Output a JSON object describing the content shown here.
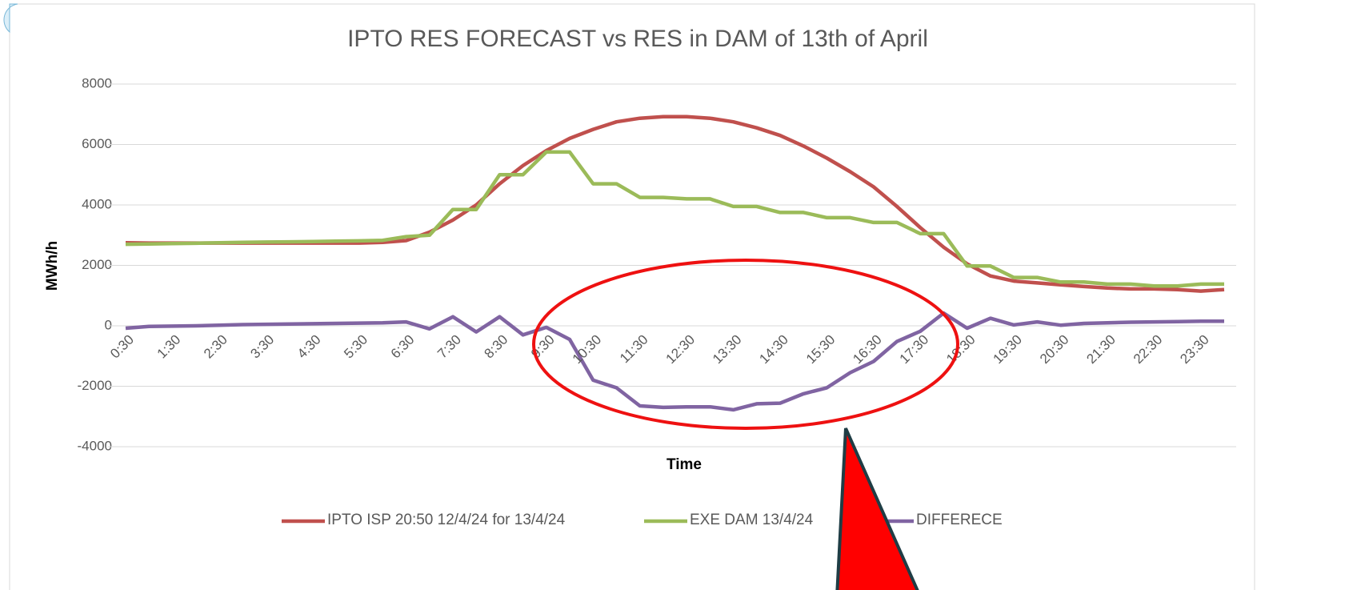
{
  "chart_data": {
    "type": "line",
    "title": "IPTO RES FORECAST vs RES in  DAM of 13th of April",
    "x_label": "Time",
    "y_label": "MWh/h",
    "categories": [
      "0:30",
      null,
      "1:30",
      null,
      "2:30",
      null,
      "3:30",
      null,
      "4:30",
      null,
      "5:30",
      null,
      "6:30",
      null,
      "7:30",
      null,
      "8:30",
      null,
      "9:30",
      null,
      "10:30",
      null,
      "11:30",
      null,
      "12:30",
      null,
      "13:30",
      null,
      "14:30",
      null,
      "15:30",
      null,
      "16:30",
      null,
      "17:30",
      null,
      "18:30",
      null,
      "19:30",
      null,
      "20:30",
      null,
      "21:30",
      null,
      "22:30",
      null,
      "23:30",
      null
    ],
    "series": [
      {
        "name": "IPTO ISP 20:50 12/4/24 for 13/4/24",
        "color": "#c0504d",
        "values": [
          2750,
          2740,
          2740,
          2740,
          2740,
          2740,
          2740,
          2740,
          2740,
          2740,
          2740,
          2760,
          2820,
          3100,
          3500,
          4000,
          4700,
          5300,
          5800,
          6200,
          6500,
          6750,
          6870,
          6920,
          6920,
          6870,
          6750,
          6550,
          6300,
          5950,
          5550,
          5100,
          4600,
          3950,
          3250,
          2600,
          2050,
          1650,
          1480,
          1420,
          1360,
          1300,
          1250,
          1220,
          1220,
          1200,
          1150,
          1200
        ]
      },
      {
        "name": "EXE DAM 13/4/24",
        "color": "#9bbb59",
        "values": [
          2700,
          2710,
          2720,
          2730,
          2750,
          2760,
          2770,
          2780,
          2790,
          2800,
          2810,
          2830,
          2950,
          3000,
          3850,
          3850,
          5000,
          5000,
          5750,
          5750,
          4700,
          4700,
          4250,
          4250,
          4200,
          4200,
          3950,
          3950,
          3750,
          3750,
          3580,
          3580,
          3420,
          3420,
          3050,
          3050,
          1980,
          1980,
          1600,
          1600,
          1450,
          1450,
          1380,
          1380,
          1320,
          1320,
          1380,
          1380
        ]
      },
      {
        "name": "DIFFERECE",
        "color": "#8064a2",
        "values": [
          -80,
          -20,
          -10,
          0,
          20,
          40,
          50,
          60,
          70,
          80,
          90,
          100,
          130,
          -100,
          300,
          -200,
          300,
          -300,
          -50,
          -450,
          -1800,
          -2050,
          -2650,
          -2700,
          -2680,
          -2680,
          -2780,
          -2580,
          -2560,
          -2250,
          -2050,
          -1550,
          -1180,
          -520,
          -180,
          420,
          -80,
          250,
          30,
          130,
          20,
          80,
          100,
          120,
          130,
          140,
          150,
          150
        ]
      }
    ],
    "ylim": [
      -4000,
      8000
    ],
    "yticks": [
      -4000,
      -2000,
      0,
      2000,
      4000,
      6000,
      8000
    ],
    "grid": true,
    "legend": "bottom"
  }
}
